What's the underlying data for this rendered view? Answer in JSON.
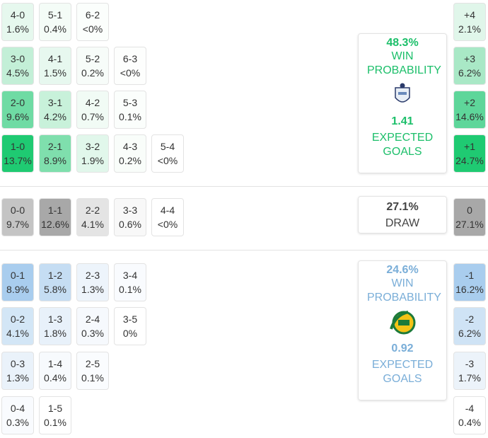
{
  "home": {
    "rows": [
      [
        {
          "score": "4-0",
          "pct": "1.6%",
          "color": "#e6f8ee"
        },
        {
          "score": "5-1",
          "pct": "0.4%",
          "color": "#f4fcf7"
        },
        {
          "score": "6-2",
          "pct": "<0%",
          "color": "#fbfefc"
        }
      ],
      [
        {
          "score": "3-0",
          "pct": "4.5%",
          "color": "#c3efd7"
        },
        {
          "score": "4-1",
          "pct": "1.5%",
          "color": "#e7f8ef"
        },
        {
          "score": "5-2",
          "pct": "0.2%",
          "color": "#f7fcf9"
        },
        {
          "score": "6-3",
          "pct": "<0%",
          "color": "#fdfefd"
        }
      ],
      [
        {
          "score": "2-0",
          "pct": "9.6%",
          "color": "#6fdba4"
        },
        {
          "score": "3-1",
          "pct": "4.2%",
          "color": "#c8f1da"
        },
        {
          "score": "4-2",
          "pct": "0.7%",
          "color": "#f1fbf5"
        },
        {
          "score": "5-3",
          "pct": "0.1%",
          "color": "#fbfefc"
        }
      ],
      [
        {
          "score": "1-0",
          "pct": "13.7%",
          "color": "#1fca72"
        },
        {
          "score": "2-1",
          "pct": "8.9%",
          "color": "#7fdfad"
        },
        {
          "score": "3-2",
          "pct": "1.9%",
          "color": "#e1f7eb"
        },
        {
          "score": "4-3",
          "pct": "0.2%",
          "color": "#f9fdfa"
        },
        {
          "score": "5-4",
          "pct": "<0%",
          "color": "#ffffff"
        }
      ]
    ],
    "summary": {
      "win_pct": "48.3%",
      "win_label": "WIN PROBABILITY",
      "xg": "1.41",
      "xg_label": "EXPECTED GOALS"
    },
    "margins": [
      {
        "label": "+4",
        "pct": "2.1%",
        "color": "#e0f6ea"
      },
      {
        "label": "+3",
        "pct": "6.2%",
        "color": "#a9e8c6"
      },
      {
        "label": "+2",
        "pct": "14.6%",
        "color": "#5ed69a"
      },
      {
        "label": "+1",
        "pct": "24.7%",
        "color": "#1fca72"
      }
    ]
  },
  "draw": {
    "rows": [
      [
        {
          "score": "0-0",
          "pct": "9.7%",
          "color": "#c4c4c4"
        },
        {
          "score": "1-1",
          "pct": "12.6%",
          "color": "#a8a8a8"
        },
        {
          "score": "2-2",
          "pct": "4.1%",
          "color": "#e4e4e4"
        },
        {
          "score": "3-3",
          "pct": "0.6%",
          "color": "#f8f8f8"
        },
        {
          "score": "4-4",
          "pct": "<0%",
          "color": "#ffffff"
        }
      ]
    ],
    "summary": {
      "pct": "27.1%",
      "label": "DRAW"
    },
    "margins": [
      {
        "label": "0",
        "pct": "27.1%",
        "color": "#a8a8a8"
      }
    ]
  },
  "away": {
    "rows": [
      [
        {
          "score": "0-1",
          "pct": "8.9%",
          "color": "#a9cdee"
        },
        {
          "score": "1-2",
          "pct": "5.8%",
          "color": "#c5ddf3"
        },
        {
          "score": "2-3",
          "pct": "1.3%",
          "color": "#edf4fb"
        },
        {
          "score": "3-4",
          "pct": "0.1%",
          "color": "#f9fbfe"
        }
      ],
      [
        {
          "score": "0-2",
          "pct": "4.1%",
          "color": "#d3e6f6"
        },
        {
          "score": "1-3",
          "pct": "1.8%",
          "color": "#e8f1fa"
        },
        {
          "score": "2-4",
          "pct": "0.3%",
          "color": "#f6f9fd"
        },
        {
          "score": "3-5",
          "pct": "0%",
          "color": "#ffffff"
        }
      ],
      [
        {
          "score": "0-3",
          "pct": "1.3%",
          "color": "#eaf2fa"
        },
        {
          "score": "1-4",
          "pct": "0.4%",
          "color": "#f7fafd"
        },
        {
          "score": "2-5",
          "pct": "0.1%",
          "color": "#fafcfe"
        }
      ],
      [
        {
          "score": "0-4",
          "pct": "0.3%",
          "color": "#f9fbfe"
        },
        {
          "score": "1-5",
          "pct": "0.1%",
          "color": "#ffffff"
        }
      ]
    ],
    "summary": {
      "win_pct": "24.6%",
      "win_label": "WIN PROBABILITY",
      "xg": "0.92",
      "xg_label": "EXPECTED GOALS"
    },
    "margins": [
      {
        "label": "-1",
        "pct": "16.2%",
        "color": "#a9cdee"
      },
      {
        "label": "-2",
        "pct": "6.2%",
        "color": "#cfe3f5"
      },
      {
        "label": "-3",
        "pct": "1.7%",
        "color": "#ecf3fa"
      },
      {
        "label": "-4",
        "pct": "0.4%",
        "color": "#ffffff"
      }
    ]
  }
}
